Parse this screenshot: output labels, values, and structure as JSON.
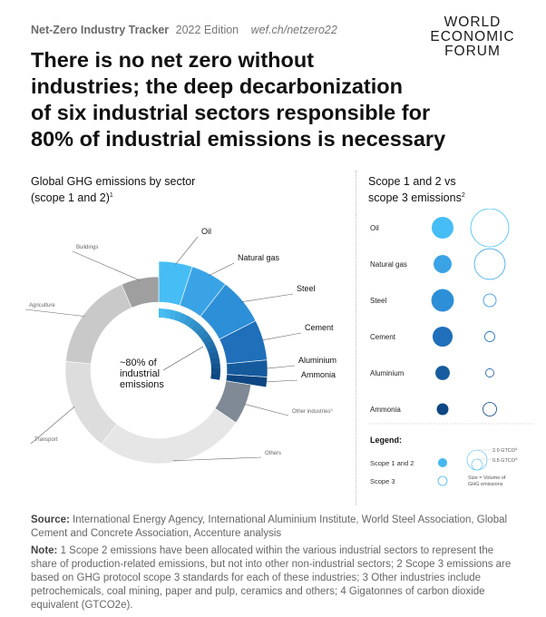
{
  "header": {
    "kicker_bold": "Net-Zero Industry Tracker",
    "kicker_edition": "2022 Edition",
    "url": "wef.ch/netzero22",
    "logo_lines": [
      "WORLD",
      "ECONOMIC",
      "FORUM"
    ]
  },
  "title_lines": [
    "There is no net zero without",
    "industries; the deep decarbonization",
    "of six industrial sectors responsible for",
    "80% of industrial emissions is necessary"
  ],
  "left_chart": {
    "title_line1": "Global GHG emissions by sector",
    "title_line2": "(scope 1 and 2)",
    "title_sup": "1",
    "center_label": [
      "~80% of",
      "industrial",
      "emissions"
    ]
  },
  "right_chart": {
    "title_line1": "Scope 1 and 2 vs",
    "title_line2": "scope 3 emissions",
    "title_sup": "2",
    "legend_title": "Legend:",
    "legend_scope12": "Scope 1 and 2",
    "legend_scope3": "Scope 3",
    "legend_size_note": [
      "Size = Volume of",
      "GHG emissions"
    ],
    "legend_ref_large": "2.0 GTCO",
    "legend_ref_small": "0.5 GTCO",
    "legend_ref_sup": "4"
  },
  "chart_data": [
    {
      "type": "pie",
      "subtype": "donut",
      "title": "Global GHG emissions by sector (scope 1 and 2)",
      "slices": [
        {
          "label": "Oil",
          "value": 5,
          "color": "#46bdf5",
          "industrial": true
        },
        {
          "label": "Natural gas",
          "value": 5.5,
          "color": "#3aa3e6",
          "industrial": true
        },
        {
          "label": "Steel",
          "value": 7,
          "color": "#2d8fd8",
          "industrial": true
        },
        {
          "label": "Cement",
          "value": 6,
          "color": "#1f6fba",
          "industrial": true
        },
        {
          "label": "Aluminium",
          "value": 2.5,
          "color": "#155b9e",
          "industrial": true
        },
        {
          "label": "Ammonia",
          "value": 1.5,
          "color": "#0d4682",
          "industrial": true
        },
        {
          "label": "Other industries",
          "sup": "3",
          "value": 7,
          "color": "#7f8a96",
          "industrial": false
        },
        {
          "label": "Others",
          "value": 26,
          "color": "#e6e6e6",
          "industrial": false
        },
        {
          "label": "Transport",
          "value": 16,
          "color": "#dddddd",
          "industrial": false
        },
        {
          "label": "Agriculture",
          "value": 17,
          "color": "#c9c9c9",
          "industrial": false
        },
        {
          "label": "Buildings",
          "value": 6.5,
          "color": "#9f9f9f",
          "industrial": false
        }
      ],
      "annotation": "~80% of industrial emissions"
    },
    {
      "type": "scatter",
      "subtype": "bubble-comparison",
      "title": "Scope 1 and 2 vs scope 3 emissions",
      "unit": "GTCO2e",
      "series": [
        {
          "name": "Scope 1 and 2",
          "color": "#46b8ef"
        },
        {
          "name": "Scope 3",
          "color": "#46b8ef"
        }
      ],
      "rows": [
        {
          "label": "Oil",
          "scope12": 1.0,
          "scope3": 4.0,
          "scope12_color": "#46bdf5"
        },
        {
          "label": "Natural gas",
          "scope12": 0.6,
          "scope3": 2.4,
          "scope12_color": "#3aa3e6"
        },
        {
          "label": "Steel",
          "scope12": 1.1,
          "scope3": 0.2,
          "scope12_color": "#2d8fd8"
        },
        {
          "label": "Cement",
          "scope12": 0.8,
          "scope3": 0.08,
          "scope12_color": "#1f6fba"
        },
        {
          "label": "Aluminium",
          "scope12": 0.3,
          "scope3": 0.03,
          "scope12_color": "#155b9e"
        },
        {
          "label": "Ammonia",
          "scope12": 0.15,
          "scope3": 0.25,
          "scope12_color": "#0d4682"
        }
      ],
      "legend_reference_values": [
        2.0,
        0.5
      ]
    }
  ],
  "footer": {
    "source_label": "Source:",
    "source_text": "International Energy Agency, International Aluminium Institute, World Steel Association, Global Cement and Concrete Association, Accenture analysis",
    "note_label": "Note:",
    "note_text": "1 Scope 2 emissions have been allocated within the various industrial sectors to represent the share of production-related emissions, but not into other non-industrial sectors; 2 Scope 3 emissions are based on GHG protocol scope 3 standards for each of these industries; 3 Other industries include petrochemicals, coal mining, paper and pulp, ceramics and others; 4 Gigatonnes of carbon dioxide equivalent (GTCO2e)."
  }
}
